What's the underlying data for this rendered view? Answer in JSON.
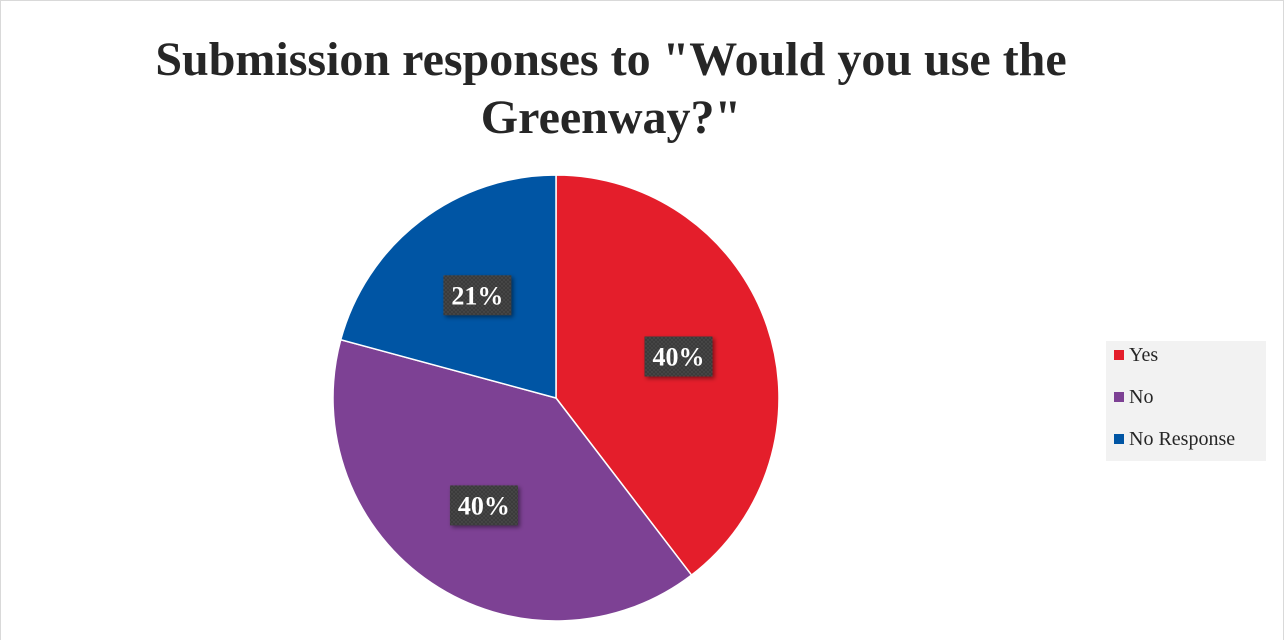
{
  "chart_data": {
    "type": "pie",
    "title": "Submission responses to \"Would you use the Greenway?\"",
    "categories": [
      "Yes",
      "No",
      "No Response"
    ],
    "values": [
      40,
      40,
      21
    ],
    "data_labels": [
      "40%",
      "40%",
      "21%"
    ],
    "colors": [
      "#e41e2b",
      "#7d4194",
      "#0055a4"
    ],
    "legend_position": "right"
  }
}
